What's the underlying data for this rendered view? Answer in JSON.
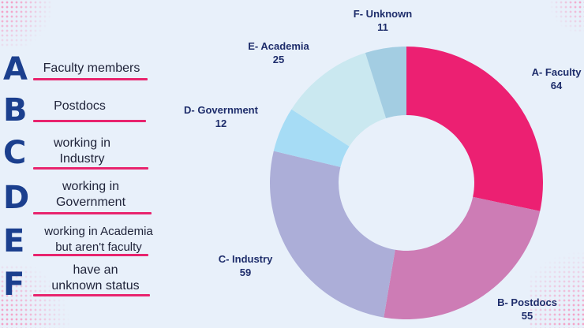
{
  "legend": [
    {
      "letter": "A",
      "text": [
        "Faculty members"
      ]
    },
    {
      "letter": "B",
      "text": [
        "Postdocs"
      ]
    },
    {
      "letter": "C",
      "text": [
        "working in",
        "Industry"
      ]
    },
    {
      "letter": "D",
      "text": [
        "working in",
        "Government"
      ]
    },
    {
      "letter": "E",
      "text": [
        "working in Academia",
        "but aren't faculty"
      ]
    },
    {
      "letter": "F",
      "text": [
        "have an",
        "unknown status"
      ]
    }
  ],
  "chart_data": {
    "type": "pie",
    "donut": true,
    "categories": [
      "A- Faculty",
      "B- Postdocs",
      "C- Industry",
      "D- Government",
      "E- Academia",
      "F- Unknown"
    ],
    "values": [
      64,
      55,
      59,
      12,
      25,
      11
    ],
    "colors": [
      "#ec2072",
      "#cd7cb5",
      "#acaed8",
      "#a6dcf5",
      "#cae8f0",
      "#a3cde2"
    ],
    "label_color": "#1e2d6b",
    "start_angle_deg": 0,
    "direction": "clockwise"
  }
}
